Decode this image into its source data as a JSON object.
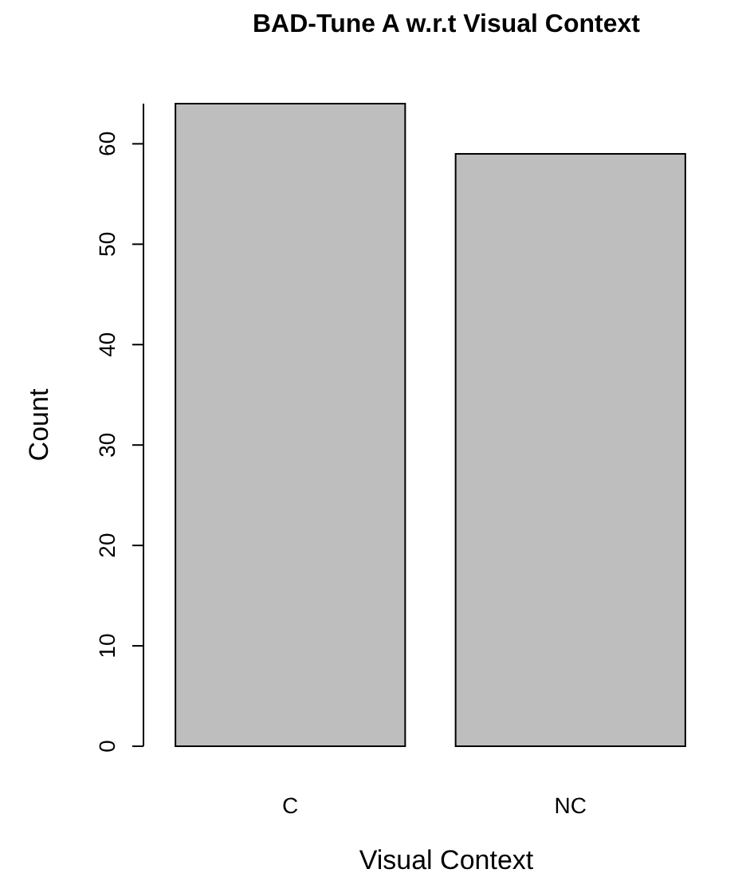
{
  "chart_data": {
    "type": "bar",
    "title": "BAD-Tune A w.r.t Visual Context",
    "xlabel": "Visual Context",
    "ylabel": "Count",
    "categories": [
      "C",
      "NC"
    ],
    "values": [
      64,
      59
    ],
    "color": "#bebebe",
    "ylim": [
      0,
      64
    ],
    "yticks": [
      0,
      10,
      20,
      30,
      40,
      50,
      60
    ],
    "grid": false
  }
}
